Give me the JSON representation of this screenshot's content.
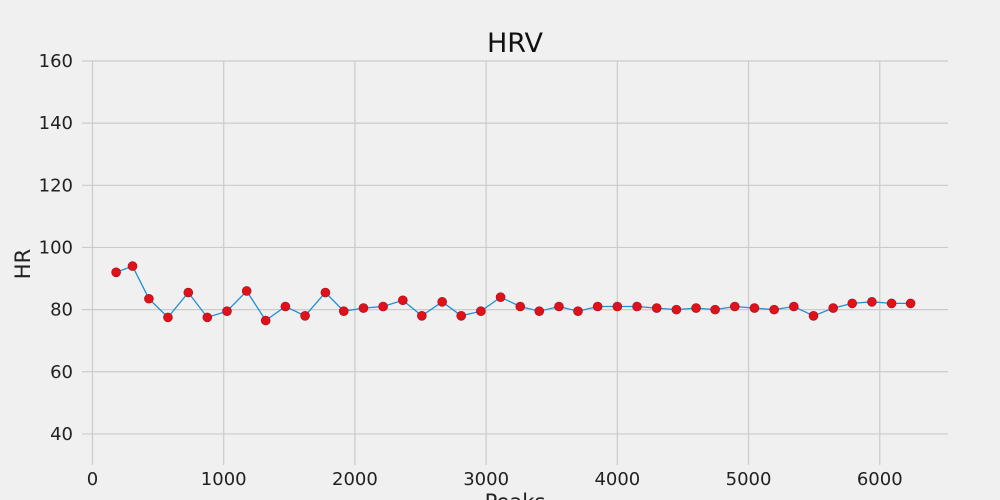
{
  "chart_data": {
    "type": "line",
    "title": "HRV",
    "xlabel": "Peaks",
    "ylabel": "HR",
    "xlim": [
      -80,
      6520
    ],
    "ylim": [
      30,
      160
    ],
    "x_ticks": [
      0,
      1000,
      2000,
      3000,
      4000,
      5000,
      6000
    ],
    "y_ticks": [
      40,
      60,
      80,
      100,
      120,
      140,
      160
    ],
    "grid": true,
    "line_color": "#1f8fd6",
    "marker_color": "#e0111b",
    "series": [
      {
        "x": [
          180,
          305,
          430,
          575,
          730,
          875,
          1025,
          1175,
          1320,
          1470,
          1620,
          1775,
          1915,
          2065,
          2215,
          2365,
          2510,
          2665,
          2810,
          2960,
          3110,
          3260,
          3405,
          3555,
          3700,
          3850,
          4000,
          4150,
          4300,
          4450,
          4600,
          4745,
          4895,
          5045,
          5195,
          5345,
          5495,
          5645,
          5790,
          5940,
          6090,
          6235
        ],
        "y": [
          92,
          94,
          83.5,
          77.5,
          85.5,
          77.5,
          79.5,
          86,
          76.5,
          81,
          78,
          85.5,
          79.5,
          80.5,
          81,
          83,
          78,
          82.5,
          78,
          79.5,
          84,
          81,
          79.5,
          81,
          79.5,
          81,
          81,
          81,
          80.5,
          80,
          80.5,
          80,
          81,
          80.5,
          80,
          81,
          78,
          80.5,
          82,
          82.5,
          82,
          82
        ]
      }
    ]
  }
}
